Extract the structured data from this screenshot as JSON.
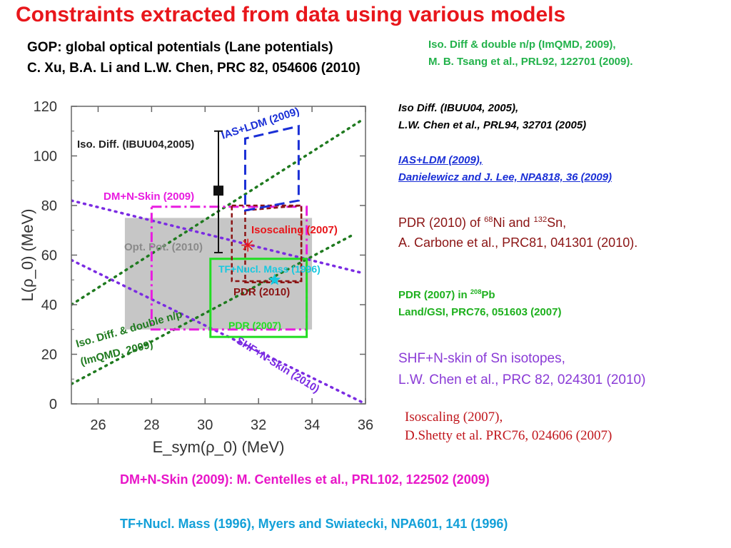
{
  "title": "Constraints extracted from data using various models",
  "refs": {
    "gop_line1": "GOP: global optical potentials (Lane potentials)",
    "gop_line2": "C. Xu, B.A. Li and L.W. Chen, PRC 82, 054606 (2010)",
    "isodiff_np_line1": "Iso. Diff & double n/p (ImQMD, 2009),",
    "isodiff_np_line2": "M. B. Tsang et al., PRL92, 122701 (2009).",
    "ibuu_line1": "Iso Diff. (IBUU04, 2005),",
    "ibuu_line2": "L.W. Chen et al., PRL94, 32701 (2005)",
    "ias_line1": "IAS+LDM (2009),",
    "ias_line2": "Danielewicz and J. Lee, NPA818, 36 (2009)",
    "pdr2010_a": "PDR (2010) of ",
    "pdr2010_sup1": "68",
    "pdr2010_b": "Ni and ",
    "pdr2010_sup2": "132",
    "pdr2010_c": "Sn,",
    "pdr2010_line2": "A. Carbone et al., PRC81, 041301 (2010).",
    "pdr2007_a": "PDR (2007)  in ",
    "pdr2007_sup": "208",
    "pdr2007_b": "Pb",
    "pdr2007_line2": "Land/GSI, PRC76, 051603 (2007)",
    "shf_line1": "SHF+N-skin of Sn isotopes,",
    "shf_line2": "L.W. Chen et al., PRC  82, 024301 (2010)",
    "iso_line1": "Isoscaling (2007),",
    "iso_line2": "D.Shetty et al. PRC76, 024606 (2007)",
    "dm_ref": "DM+N-Skin (2009): M. Centelles et al., PRL102, 122502 (2009)",
    "tf_ref": "TF+Nucl.  Mass (1996), Myers and Swiatecki, NPA601, 141 (1996)"
  },
  "colors": {
    "title": "#e8161b",
    "gop_gray": "#c6c6c6",
    "isodiff_green": "#1f7a1f",
    "ias_blue": "#1a2fd6",
    "dm_magenta": "#e81ce0",
    "isoscaling_red": "#8b1414",
    "pdr2007_green": "#22dd22",
    "tf_cyan": "#18c8e0",
    "shf_purple": "#7a2be2"
  },
  "chart_data": {
    "type": "scatter",
    "xlabel": "E_sym(ρ_0) (MeV)",
    "ylabel": "L(ρ_0) (MeV)",
    "xlim": [
      25,
      36
    ],
    "ylim": [
      0,
      120
    ],
    "x_ticks": [
      "26",
      "28",
      "30",
      "32",
      "34",
      "36"
    ],
    "y_ticks": [
      "0",
      "20",
      "40",
      "60",
      "80",
      "100",
      "120"
    ],
    "regions": [
      {
        "name": "Opt. Pot. (2010)",
        "label": "Opt. Pot. (2010)",
        "shape": "rect",
        "x": [
          27,
          34
        ],
        "y": [
          30,
          75
        ],
        "color": "#c6c6c6"
      },
      {
        "name": "DM+N-Skin (2009)",
        "label": "DM+N-Skin (2009)",
        "shape": "rect",
        "x": [
          28,
          33.8
        ],
        "y": [
          30,
          79.5
        ],
        "color": "#e81ce0"
      },
      {
        "name": "Isoscaling (2007)",
        "label": "Isoscaling (2007)",
        "shape": "rect",
        "x": [
          31,
          33.6
        ],
        "y": [
          49.5,
          80
        ],
        "color": "#8b1414"
      },
      {
        "name": "PDR (2007)",
        "label": "PDR (2007)",
        "shape": "rect",
        "x": [
          30.2,
          33.8
        ],
        "y": [
          27,
          58.5
        ],
        "color": "#22dd22"
      },
      {
        "name": "IAS+LDM (2009)",
        "label": "IAS+LDM (2009)",
        "shape": "polygon",
        "points": [
          [
            31.5,
            78
          ],
          [
            33.5,
            82
          ],
          [
            33.5,
            112
          ],
          [
            31.5,
            107
          ]
        ],
        "color": "#1a2fd6"
      },
      {
        "name": "PDR (2010)",
        "label": "PDR (2010)",
        "shape": "polygon",
        "points": [
          [
            31.5,
            78
          ],
          [
            31.5,
            49
          ],
          [
            33.6,
            49
          ],
          [
            33.6,
            80
          ]
        ],
        "color": "#8b1414"
      }
    ],
    "bands": [
      {
        "name": "Iso. Diff. & double n/p (ImQMD, 2009)",
        "color": "#1f7a1f",
        "upper": [
          [
            25,
            40
          ],
          [
            35.8,
            114
          ]
        ],
        "lower": [
          [
            25,
            8
          ],
          [
            35.5,
            68
          ]
        ]
      },
      {
        "name": "SHF+N-Skin (2010)",
        "color": "#7a2be2",
        "upper": [
          [
            25,
            82
          ],
          [
            35.8,
            53
          ]
        ],
        "lower": [
          [
            25,
            58
          ],
          [
            36,
            0
          ]
        ]
      }
    ],
    "points": [
      {
        "name": "Iso. Diff. (IBUU04,2005)",
        "x": 30.5,
        "y": 86,
        "yerr_low": 61,
        "yerr_high": 110,
        "marker": "square",
        "color": "#111111"
      },
      {
        "name": "Isoscaling (2007)",
        "x": 31.6,
        "y": 64,
        "marker": "asterisk",
        "color": "#e8161b"
      },
      {
        "name": "TF+Nucl. Mass (1996)",
        "x": 32.6,
        "y": 50,
        "marker": "star",
        "color": "#18c8e0"
      }
    ],
    "annotations": [
      "Iso. Diff. (IBUU04,2005)",
      "IAS+LDM (2009)",
      "DM+N-Skin (2009)",
      "Isoscaling (2007)",
      "Opt. Pot. (2010)",
      "TF+Nucl. Mass (1996)",
      "PDR (2010)",
      "Iso. Diff.  & double n/p",
      "(ImQMD, 2009)",
      "PDR (2007)",
      "SHF+N-Skin (2010)"
    ]
  }
}
